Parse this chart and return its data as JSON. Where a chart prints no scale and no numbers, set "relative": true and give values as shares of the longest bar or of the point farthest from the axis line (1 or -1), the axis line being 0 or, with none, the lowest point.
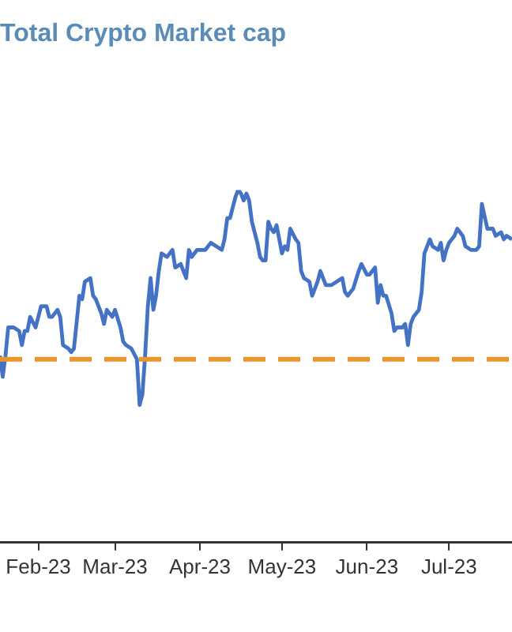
{
  "chart_data": {
    "type": "line",
    "title": "Total Crypto Market cap",
    "relative": true,
    "x": [
      "2023-01-18",
      "2023-01-19",
      "2023-01-20",
      "2023-01-21",
      "2023-01-23",
      "2023-01-25",
      "2023-01-26",
      "2023-01-27",
      "2023-01-28",
      "2023-01-29",
      "2023-01-31",
      "2023-02-02",
      "2023-02-04",
      "2023-02-05",
      "2023-02-06",
      "2023-02-08",
      "2023-02-09",
      "2023-02-10",
      "2023-02-12",
      "2023-02-13",
      "2023-02-14",
      "2023-02-16",
      "2023-02-17",
      "2023-02-18",
      "2023-02-20",
      "2023-02-21",
      "2023-02-22",
      "2023-02-24",
      "2023-02-25",
      "2023-02-26",
      "2023-02-28",
      "2023-03-01",
      "2023-03-03",
      "2023-03-04",
      "2023-03-05",
      "2023-03-07",
      "2023-03-09",
      "2023-03-10",
      "2023-03-11",
      "2023-03-12",
      "2023-03-13",
      "2023-03-14",
      "2023-03-15",
      "2023-03-16",
      "2023-03-17",
      "2023-03-18",
      "2023-03-20",
      "2023-03-22",
      "2023-03-23",
      "2023-03-25",
      "2023-03-26",
      "2023-03-27",
      "2023-03-28",
      "2023-03-29",
      "2023-03-31",
      "2023-04-03",
      "2023-04-04",
      "2023-04-05",
      "2023-04-07",
      "2023-04-09",
      "2023-04-10",
      "2023-04-11",
      "2023-04-12",
      "2023-04-14",
      "2023-04-15",
      "2023-04-16",
      "2023-04-17",
      "2023-04-18",
      "2023-04-19",
      "2023-04-20",
      "2023-04-22",
      "2023-04-23",
      "2023-04-24",
      "2023-04-25",
      "2023-04-26",
      "2023-04-27",
      "2023-04-28",
      "2023-04-29",
      "2023-05-01",
      "2023-05-02",
      "2023-05-03",
      "2023-05-04",
      "2023-05-06",
      "2023-05-07",
      "2023-05-08",
      "2023-05-09",
      "2023-05-11",
      "2023-05-12",
      "2023-05-14",
      "2023-05-15",
      "2023-05-17",
      "2023-05-19",
      "2023-05-21",
      "2023-05-23",
      "2023-05-24",
      "2023-05-25",
      "2023-05-27",
      "2023-05-29",
      "2023-05-30",
      "2023-06-01",
      "2023-06-02",
      "2023-06-03",
      "2023-06-04",
      "2023-06-05",
      "2023-06-06",
      "2023-06-07",
      "2023-06-08",
      "2023-06-10",
      "2023-06-11",
      "2023-06-12",
      "2023-06-14",
      "2023-06-15",
      "2023-06-16",
      "2023-06-17",
      "2023-06-18",
      "2023-06-20",
      "2023-06-21",
      "2023-06-22",
      "2023-06-23",
      "2023-06-24",
      "2023-06-25",
      "2023-06-27",
      "2023-06-28",
      "2023-06-29",
      "2023-06-30",
      "2023-07-01",
      "2023-07-02",
      "2023-07-03",
      "2023-07-04",
      "2023-07-06",
      "2023-07-07",
      "2023-07-09",
      "2023-07-11",
      "2023-07-12",
      "2023-07-13",
      "2023-07-15",
      "2023-07-17",
      "2023-07-18",
      "2023-07-20",
      "2023-07-21",
      "2023-07-22",
      "2023-07-24"
    ],
    "series": [
      {
        "color": "#4472c4",
        "values": [
          0.53,
          0.47,
          0.53,
          0.61,
          0.61,
          0.6,
          0.56,
          0.6,
          0.6,
          0.64,
          0.61,
          0.67,
          0.67,
          0.64,
          0.64,
          0.66,
          0.64,
          0.56,
          0.55,
          0.54,
          0.55,
          0.7,
          0.69,
          0.74,
          0.75,
          0.7,
          0.69,
          0.65,
          0.62,
          0.66,
          0.64,
          0.66,
          0.61,
          0.57,
          0.56,
          0.55,
          0.52,
          0.39,
          0.42,
          0.53,
          0.67,
          0.75,
          0.66,
          0.7,
          0.77,
          0.82,
          0.81,
          0.83,
          0.78,
          0.79,
          0.77,
          0.75,
          0.83,
          0.81,
          0.83,
          0.83,
          0.84,
          0.85,
          0.84,
          0.83,
          0.86,
          0.92,
          0.92,
          0.98,
          1.0,
          0.99,
          0.97,
          0.99,
          0.97,
          0.91,
          0.85,
          0.81,
          0.8,
          0.8,
          0.91,
          0.89,
          0.88,
          0.9,
          0.82,
          0.84,
          0.83,
          0.89,
          0.86,
          0.85,
          0.77,
          0.75,
          0.74,
          0.7,
          0.74,
          0.77,
          0.73,
          0.73,
          0.74,
          0.75,
          0.71,
          0.7,
          0.72,
          0.77,
          0.79,
          0.76,
          0.76,
          0.77,
          0.78,
          0.68,
          0.73,
          0.7,
          0.7,
          0.65,
          0.6,
          0.61,
          0.61,
          0.62,
          0.56,
          0.62,
          0.64,
          0.66,
          0.71,
          0.82,
          0.84,
          0.86,
          0.84,
          0.83,
          0.85,
          0.8,
          0.83,
          0.85,
          0.86,
          0.87,
          0.89,
          0.87,
          0.84,
          0.83,
          0.83,
          0.84,
          0.96,
          0.89,
          0.89,
          0.87,
          0.88,
          0.86,
          0.87,
          0.86
        ]
      }
    ],
    "xlim": [
      "2023-01-18",
      "2023-07-24"
    ],
    "xticks": [
      {
        "value": "2023-02-01",
        "label": "Feb-23"
      },
      {
        "value": "2023-03-01",
        "label": "Mar-23"
      },
      {
        "value": "2023-04-01",
        "label": "Apr-23"
      },
      {
        "value": "2023-05-01",
        "label": "May-23"
      },
      {
        "value": "2023-06-01",
        "label": "Jun-23"
      },
      {
        "value": "2023-07-01",
        "label": "Jul-23"
      }
    ],
    "ref_lines": [
      {
        "axis": "y",
        "value": 0.52,
        "color": "#e8962e",
        "line_style": "dashed"
      }
    ],
    "grid": false,
    "legend": false,
    "marker": "none",
    "line_style": "solid"
  }
}
